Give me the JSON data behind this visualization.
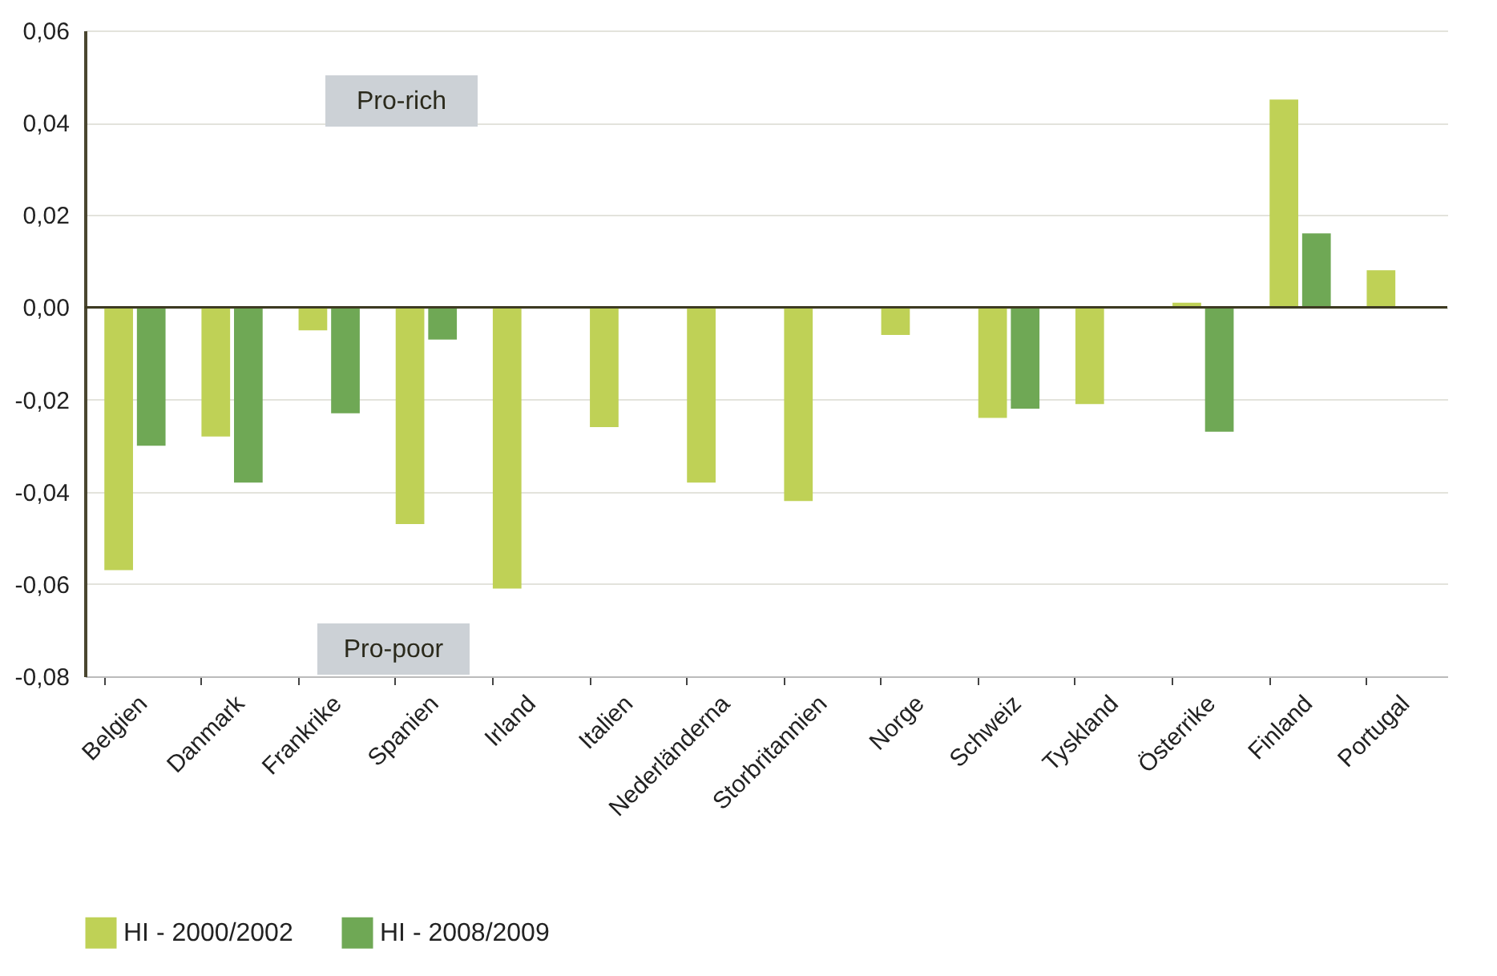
{
  "chart_data": {
    "type": "bar",
    "categories": [
      "Belgien",
      "Danmark",
      "Frankrike",
      "Spanien",
      "Irland",
      "Italien",
      "Nederländerna",
      "Storbritannien",
      "Norge",
      "Schweiz",
      "Tyskland",
      "Österrike",
      "Finland",
      "Portugal"
    ],
    "series": [
      {
        "name": "HI - 2000/2002",
        "color": "#bfd156",
        "values": [
          -0.057,
          -0.028,
          -0.005,
          -0.047,
          -0.061,
          -0.026,
          -0.038,
          -0.042,
          -0.006,
          -0.024,
          -0.021,
          0.001,
          0.045,
          0.008
        ]
      },
      {
        "name": "HI - 2008/2009",
        "color": "#6fa855",
        "values": [
          -0.03,
          -0.038,
          -0.023,
          -0.007,
          null,
          null,
          null,
          null,
          null,
          -0.022,
          null,
          -0.027,
          0.016,
          null
        ]
      }
    ],
    "ylim": [
      -0.08,
      0.06
    ],
    "yticks": [
      {
        "value": -0.08,
        "label": "-0,08"
      },
      {
        "value": -0.06,
        "label": "-0,06"
      },
      {
        "value": -0.04,
        "label": "-0,04"
      },
      {
        "value": -0.02,
        "label": "-0,02"
      },
      {
        "value": 0,
        "label": "0,00"
      },
      {
        "value": 0.02,
        "label": "0,02"
      },
      {
        "value": 0.04,
        "label": "0,04"
      },
      {
        "value": 0.06,
        "label": "0,06"
      }
    ],
    "grid": "y",
    "legend": "bottom left",
    "ref_lines": [
      {
        "axis": "y",
        "value": 0,
        "color": "#3d3a22"
      }
    ],
    "annotations": [
      "Pro-rich",
      "Pro-poor"
    ]
  }
}
